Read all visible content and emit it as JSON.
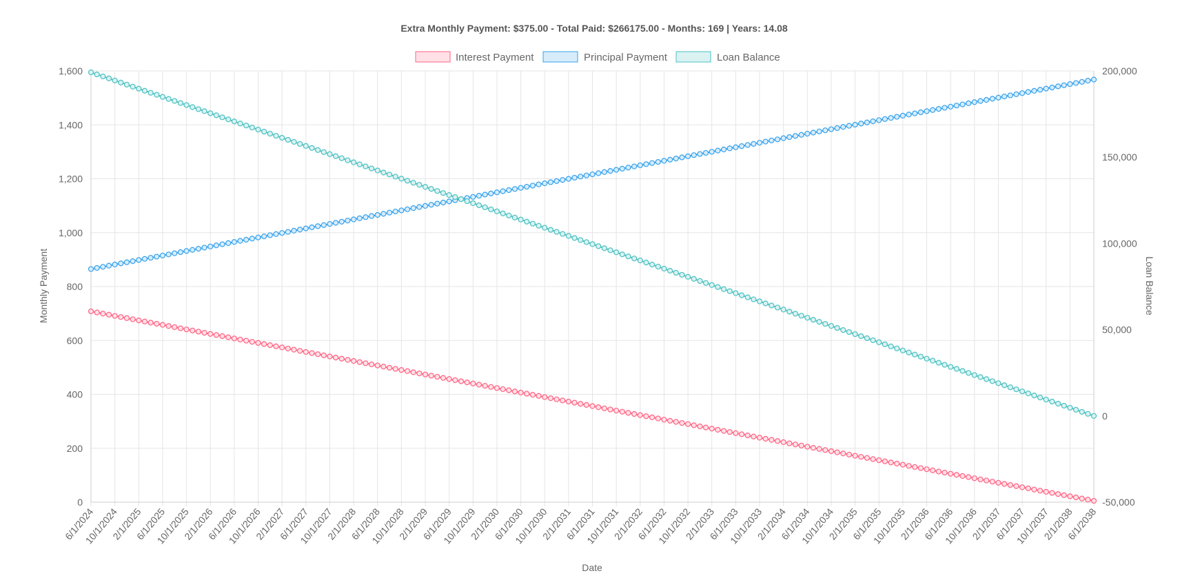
{
  "chart_data": {
    "type": "line",
    "title": "Extra Monthly Payment: $375.00 - Total Paid: $266175.00 - Months: 169 | Years: 14.08",
    "xlabel": "Date",
    "ylabel": "Monthly Payment",
    "y2label": "Loan Balance",
    "ylim": [
      0,
      1600
    ],
    "y2lim": [
      -50000,
      200000
    ],
    "yticks": [
      0,
      200,
      400,
      600,
      800,
      1000,
      1200,
      1400,
      1600
    ],
    "y2ticks": [
      -50000,
      0,
      50000,
      100000,
      150000,
      200000
    ],
    "x_start": "6/1/2024",
    "x_end": "6/1/2038",
    "x_count": 169,
    "x_tick_labels": [
      "6/1/2024",
      "10/1/2024",
      "2/1/2025",
      "6/1/2025",
      "10/1/2025",
      "2/1/2026",
      "6/1/2026",
      "10/1/2026",
      "2/1/2027",
      "6/1/2027",
      "10/1/2027",
      "2/1/2028",
      "6/1/2028",
      "10/1/2028",
      "2/1/2029",
      "6/1/2029",
      "10/1/2029",
      "2/1/2030",
      "6/1/2030",
      "10/1/2030",
      "2/1/2031",
      "6/1/2031",
      "10/1/2031",
      "2/1/2032",
      "6/1/2032",
      "10/1/2032",
      "2/1/2033",
      "6/1/2033",
      "10/1/2033",
      "2/1/2034",
      "6/1/2034",
      "10/1/2034",
      "2/1/2035",
      "6/1/2035",
      "10/1/2035",
      "2/1/2036",
      "6/1/2036",
      "10/1/2036",
      "2/1/2037",
      "6/1/2037",
      "10/1/2037",
      "2/1/2038",
      "6/1/2038"
    ],
    "grid": true,
    "legend_position": "top",
    "series": [
      {
        "name": "Interest Payment",
        "axis": "left",
        "color": "#ff6384",
        "fill": "#ffe0e6",
        "start": 708,
        "end": 5
      },
      {
        "name": "Principal Payment",
        "axis": "left",
        "color": "#36a2eb",
        "fill": "#d7ecfb",
        "start": 865,
        "end": 1568
      },
      {
        "name": "Loan Balance",
        "axis": "right",
        "color": "#4bc0c0",
        "fill": "#dbf2f2",
        "start": 199200,
        "end": 0
      }
    ]
  }
}
